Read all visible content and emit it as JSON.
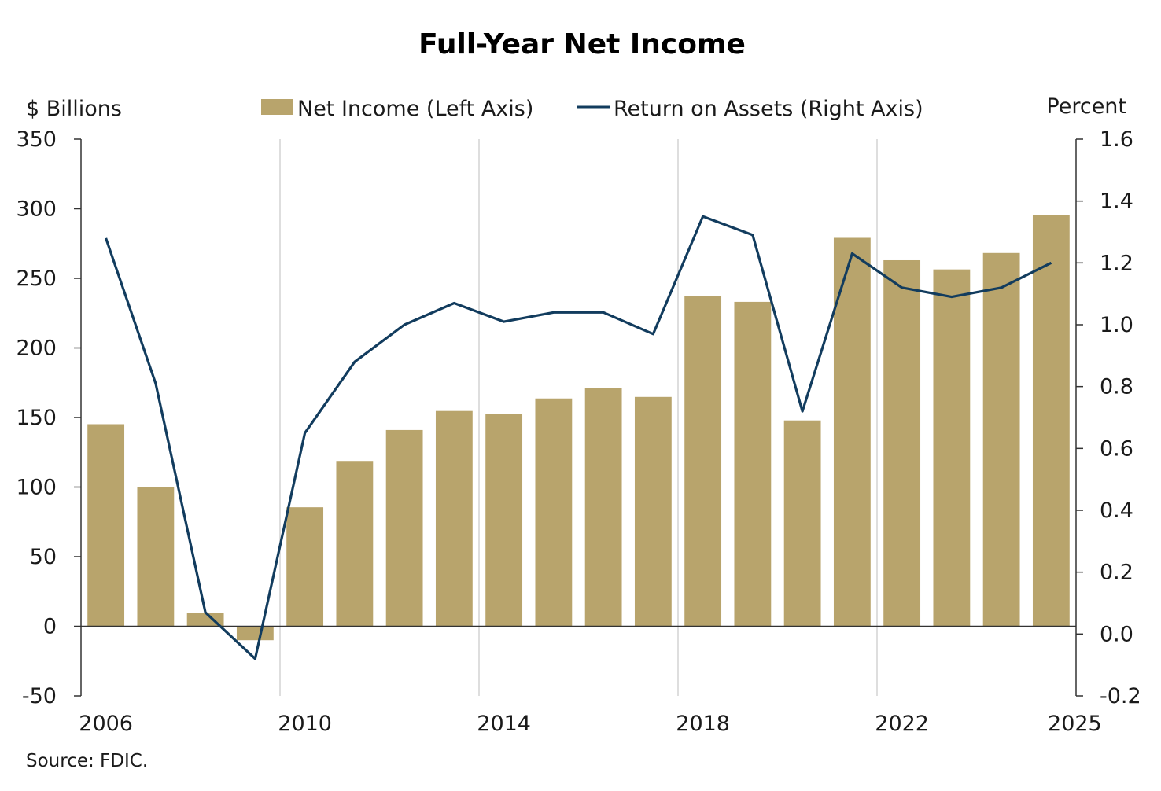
{
  "chart_data": {
    "type": "bar",
    "title": "Full-Year Net Income",
    "left_axis_label": "$ Billions",
    "right_axis_label": "Percent",
    "source": "Source: FDIC.",
    "categories": [
      "2006",
      "2007",
      "2008",
      "2009",
      "2010",
      "2011",
      "2012",
      "2013",
      "2014",
      "2015",
      "2016",
      "2017",
      "2018",
      "2019",
      "2020",
      "2021",
      "2022",
      "2023",
      "2024",
      "2025"
    ],
    "x_tick_labels": [
      "2006",
      "2010",
      "2014",
      "2018",
      "2022",
      "2025"
    ],
    "left_ylim": [
      -50,
      350
    ],
    "left_ticks": [
      "350",
      "300",
      "250",
      "200",
      "150",
      "100",
      "50",
      "0",
      "-50"
    ],
    "right_ylim": [
      -0.2,
      1.6
    ],
    "right_ticks": [
      "1.6",
      "1.4",
      "1.2",
      "1.0",
      "0.8",
      "0.6",
      "0.4",
      "0.2",
      "0.0",
      "-0.2"
    ],
    "series": [
      {
        "name": "Net Income (Left Axis)",
        "type": "bar",
        "axis": "left",
        "color": "#b8a46c",
        "values": [
          145.2,
          100.0,
          9.5,
          -10.0,
          85.5,
          118.8,
          141.0,
          154.7,
          152.7,
          163.7,
          171.3,
          164.8,
          237.0,
          233.1,
          147.9,
          279.1,
          263.0,
          256.4,
          268.2,
          295.6
        ]
      },
      {
        "name": "Return on Assets (Right Axis)",
        "type": "line",
        "axis": "right",
        "color": "#123c5e",
        "values": [
          1.28,
          0.81,
          0.07,
          -0.08,
          0.65,
          0.88,
          1.0,
          1.07,
          1.01,
          1.04,
          1.04,
          0.97,
          1.35,
          1.29,
          0.72,
          1.23,
          1.12,
          1.09,
          1.12,
          1.2
        ]
      }
    ],
    "grid": "vertical at labeled years",
    "legend_placement": "top"
  }
}
